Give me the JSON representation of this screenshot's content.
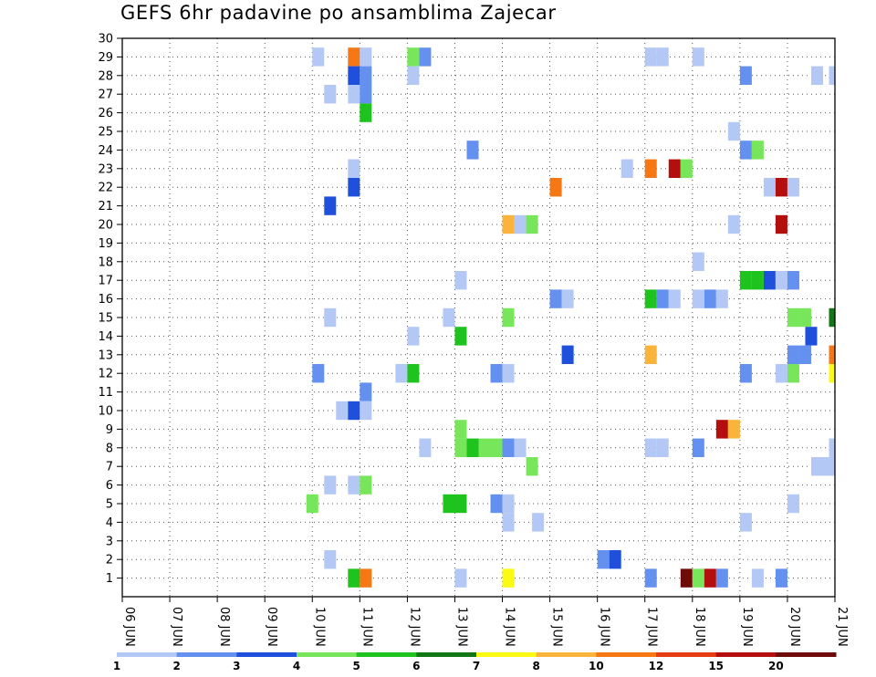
{
  "chart_data": {
    "type": "heatmap",
    "title": "GEFS 6hr padavine po ansamblima Zajecar",
    "x_tick_labels": [
      "06 JUN",
      "07 JUN",
      "08 JUN",
      "09 JUN",
      "10 JUN",
      "11 JUN",
      "12 JUN",
      "13 JUN",
      "14 JUN",
      "15 JUN",
      "16 JUN",
      "17 JUN",
      "18 JUN",
      "19 JUN",
      "20 JUN",
      "21 JUN"
    ],
    "y_tick_labels": [
      "1",
      "2",
      "3",
      "4",
      "5",
      "6",
      "7",
      "8",
      "9",
      "10",
      "11",
      "12",
      "13",
      "14",
      "15",
      "16",
      "17",
      "18",
      "19",
      "20",
      "21",
      "22",
      "23",
      "24",
      "25",
      "26",
      "27",
      "28",
      "29",
      "30"
    ],
    "x_range_days": [
      0,
      15
    ],
    "y_range": [
      0,
      30
    ],
    "grid": "dotted",
    "legend": {
      "placement": "bottom",
      "tick_labels": [
        "1",
        "2",
        "3",
        "4",
        "5",
        "6",
        "7",
        "8",
        "10",
        "12",
        "15",
        "20"
      ],
      "colors": [
        "#b4c8f6",
        "#6490f0",
        "#1e50dc",
        "#78e65a",
        "#1ec31e",
        "#0f7814",
        "#fafa14",
        "#fab43c",
        "#f57814",
        "#e63c14",
        "#b40f0f",
        "#6e0a0a"
      ]
    },
    "cells": [
      {
        "x": 4.0,
        "y": 29,
        "c": 1
      },
      {
        "x": 4.75,
        "y": 29,
        "c": 9
      },
      {
        "x": 5.0,
        "y": 29,
        "c": 1
      },
      {
        "x": 6.0,
        "y": 29,
        "c": 4
      },
      {
        "x": 6.25,
        "y": 29,
        "c": 2
      },
      {
        "x": 11.0,
        "y": 29,
        "c": 1
      },
      {
        "x": 11.25,
        "y": 29,
        "c": 1
      },
      {
        "x": 12.0,
        "y": 29,
        "c": 1
      },
      {
        "x": 4.75,
        "y": 28,
        "c": 3
      },
      {
        "x": 5.0,
        "y": 28,
        "c": 2
      },
      {
        "x": 6.0,
        "y": 28,
        "c": 1
      },
      {
        "x": 13.0,
        "y": 28,
        "c": 2
      },
      {
        "x": 14.5,
        "y": 28,
        "c": 1
      },
      {
        "x": 14.875,
        "y": 28,
        "c": 1
      },
      {
        "x": 4.25,
        "y": 27,
        "c": 1
      },
      {
        "x": 4.75,
        "y": 27,
        "c": 1
      },
      {
        "x": 5.0,
        "y": 27,
        "c": 2
      },
      {
        "x": 5.0,
        "y": 26,
        "c": 5
      },
      {
        "x": 12.75,
        "y": 25,
        "c": 1
      },
      {
        "x": 7.25,
        "y": 24,
        "c": 2
      },
      {
        "x": 13.0,
        "y": 24,
        "c": 2
      },
      {
        "x": 13.25,
        "y": 24,
        "c": 4
      },
      {
        "x": 4.75,
        "y": 23,
        "c": 1
      },
      {
        "x": 10.5,
        "y": 23,
        "c": 1
      },
      {
        "x": 11.0,
        "y": 23,
        "c": 9
      },
      {
        "x": 11.5,
        "y": 23,
        "c": 11
      },
      {
        "x": 11.75,
        "y": 23,
        "c": 4
      },
      {
        "x": 4.75,
        "y": 22,
        "c": 3
      },
      {
        "x": 9.0,
        "y": 22,
        "c": 9
      },
      {
        "x": 13.5,
        "y": 22,
        "c": 1
      },
      {
        "x": 13.75,
        "y": 22,
        "c": 11
      },
      {
        "x": 14.0,
        "y": 22,
        "c": 1
      },
      {
        "x": 4.25,
        "y": 21,
        "c": 3
      },
      {
        "x": 8.0,
        "y": 20,
        "c": 8
      },
      {
        "x": 8.25,
        "y": 20,
        "c": 1
      },
      {
        "x": 8.5,
        "y": 20,
        "c": 4
      },
      {
        "x": 12.75,
        "y": 20,
        "c": 1
      },
      {
        "x": 13.75,
        "y": 20,
        "c": 11
      },
      {
        "x": 12.0,
        "y": 18,
        "c": 1
      },
      {
        "x": 7.0,
        "y": 17,
        "c": 1
      },
      {
        "x": 13.0,
        "y": 17,
        "c": 5
      },
      {
        "x": 13.25,
        "y": 17,
        "c": 5
      },
      {
        "x": 13.5,
        "y": 17,
        "c": 3
      },
      {
        "x": 13.75,
        "y": 17,
        "c": 1
      },
      {
        "x": 14.0,
        "y": 17,
        "c": 2
      },
      {
        "x": 9.0,
        "y": 16,
        "c": 2
      },
      {
        "x": 9.25,
        "y": 16,
        "c": 1
      },
      {
        "x": 11.0,
        "y": 16,
        "c": 5
      },
      {
        "x": 11.25,
        "y": 16,
        "c": 2
      },
      {
        "x": 11.5,
        "y": 16,
        "c": 1
      },
      {
        "x": 12.0,
        "y": 16,
        "c": 1
      },
      {
        "x": 12.25,
        "y": 16,
        "c": 2
      },
      {
        "x": 12.5,
        "y": 16,
        "c": 1
      },
      {
        "x": 4.25,
        "y": 15,
        "c": 1
      },
      {
        "x": 6.75,
        "y": 15,
        "c": 1
      },
      {
        "x": 8.0,
        "y": 15,
        "c": 4
      },
      {
        "x": 14.0,
        "y": 15,
        "c": 4
      },
      {
        "x": 14.25,
        "y": 15,
        "c": 4
      },
      {
        "x": 14.875,
        "y": 15,
        "c": 6
      },
      {
        "x": 6.0,
        "y": 14,
        "c": 1
      },
      {
        "x": 7.0,
        "y": 14,
        "c": 5
      },
      {
        "x": 14.375,
        "y": 14,
        "c": 3
      },
      {
        "x": 9.25,
        "y": 13,
        "c": 3
      },
      {
        "x": 11.0,
        "y": 13,
        "c": 8
      },
      {
        "x": 14.0,
        "y": 13,
        "c": 2
      },
      {
        "x": 14.25,
        "y": 13,
        "c": 2
      },
      {
        "x": 14.875,
        "y": 13,
        "c": 9
      },
      {
        "x": 4.0,
        "y": 12,
        "c": 2
      },
      {
        "x": 5.75,
        "y": 12,
        "c": 1
      },
      {
        "x": 6.0,
        "y": 12,
        "c": 5
      },
      {
        "x": 7.75,
        "y": 12,
        "c": 2
      },
      {
        "x": 8.0,
        "y": 12,
        "c": 1
      },
      {
        "x": 13.0,
        "y": 12,
        "c": 2
      },
      {
        "x": 13.75,
        "y": 12,
        "c": 1
      },
      {
        "x": 14.0,
        "y": 12,
        "c": 4
      },
      {
        "x": 14.875,
        "y": 12,
        "c": 7
      },
      {
        "x": 5.0,
        "y": 11,
        "c": 2
      },
      {
        "x": 4.5,
        "y": 10,
        "c": 1
      },
      {
        "x": 4.75,
        "y": 10,
        "c": 3
      },
      {
        "x": 5.0,
        "y": 10,
        "c": 1
      },
      {
        "x": 7.0,
        "y": 9,
        "c": 4
      },
      {
        "x": 12.5,
        "y": 9,
        "c": 11
      },
      {
        "x": 12.75,
        "y": 9,
        "c": 8
      },
      {
        "x": 6.25,
        "y": 8,
        "c": 1
      },
      {
        "x": 7.0,
        "y": 8,
        "c": 4
      },
      {
        "x": 7.25,
        "y": 8,
        "c": 5
      },
      {
        "x": 7.5,
        "y": 8,
        "c": 4
      },
      {
        "x": 7.75,
        "y": 8,
        "c": 4
      },
      {
        "x": 8.0,
        "y": 8,
        "c": 2
      },
      {
        "x": 8.25,
        "y": 8,
        "c": 1
      },
      {
        "x": 11.0,
        "y": 8,
        "c": 1
      },
      {
        "x": 11.25,
        "y": 8,
        "c": 1
      },
      {
        "x": 12.0,
        "y": 8,
        "c": 2
      },
      {
        "x": 14.875,
        "y": 8,
        "c": 1
      },
      {
        "x": 8.5,
        "y": 7,
        "c": 4
      },
      {
        "x": 14.5,
        "y": 7,
        "c": 1
      },
      {
        "x": 14.75,
        "y": 7,
        "c": 1
      },
      {
        "x": 4.25,
        "y": 6,
        "c": 1
      },
      {
        "x": 4.75,
        "y": 6,
        "c": 1
      },
      {
        "x": 5.0,
        "y": 6,
        "c": 4
      },
      {
        "x": 3.875,
        "y": 5,
        "c": 4
      },
      {
        "x": 6.75,
        "y": 5,
        "c": 5
      },
      {
        "x": 7.0,
        "y": 5,
        "c": 5
      },
      {
        "x": 7.75,
        "y": 5,
        "c": 2
      },
      {
        "x": 8.0,
        "y": 5,
        "c": 1
      },
      {
        "x": 14.0,
        "y": 5,
        "c": 1
      },
      {
        "x": 8.0,
        "y": 4,
        "c": 1
      },
      {
        "x": 8.625,
        "y": 4,
        "c": 1
      },
      {
        "x": 13.0,
        "y": 4,
        "c": 1
      },
      {
        "x": 4.25,
        "y": 2,
        "c": 1
      },
      {
        "x": 10.0,
        "y": 2,
        "c": 2
      },
      {
        "x": 10.25,
        "y": 2,
        "c": 3
      },
      {
        "x": 4.75,
        "y": 1,
        "c": 5
      },
      {
        "x": 5.0,
        "y": 1,
        "c": 9
      },
      {
        "x": 7.0,
        "y": 1,
        "c": 1
      },
      {
        "x": 8.0,
        "y": 1,
        "c": 7
      },
      {
        "x": 11.0,
        "y": 1,
        "c": 2
      },
      {
        "x": 11.75,
        "y": 1,
        "c": 12
      },
      {
        "x": 12.0,
        "y": 1,
        "c": 4
      },
      {
        "x": 12.25,
        "y": 1,
        "c": 11
      },
      {
        "x": 12.5,
        "y": 1,
        "c": 2
      },
      {
        "x": 13.25,
        "y": 1,
        "c": 1
      },
      {
        "x": 13.75,
        "y": 1,
        "c": 2
      }
    ]
  }
}
